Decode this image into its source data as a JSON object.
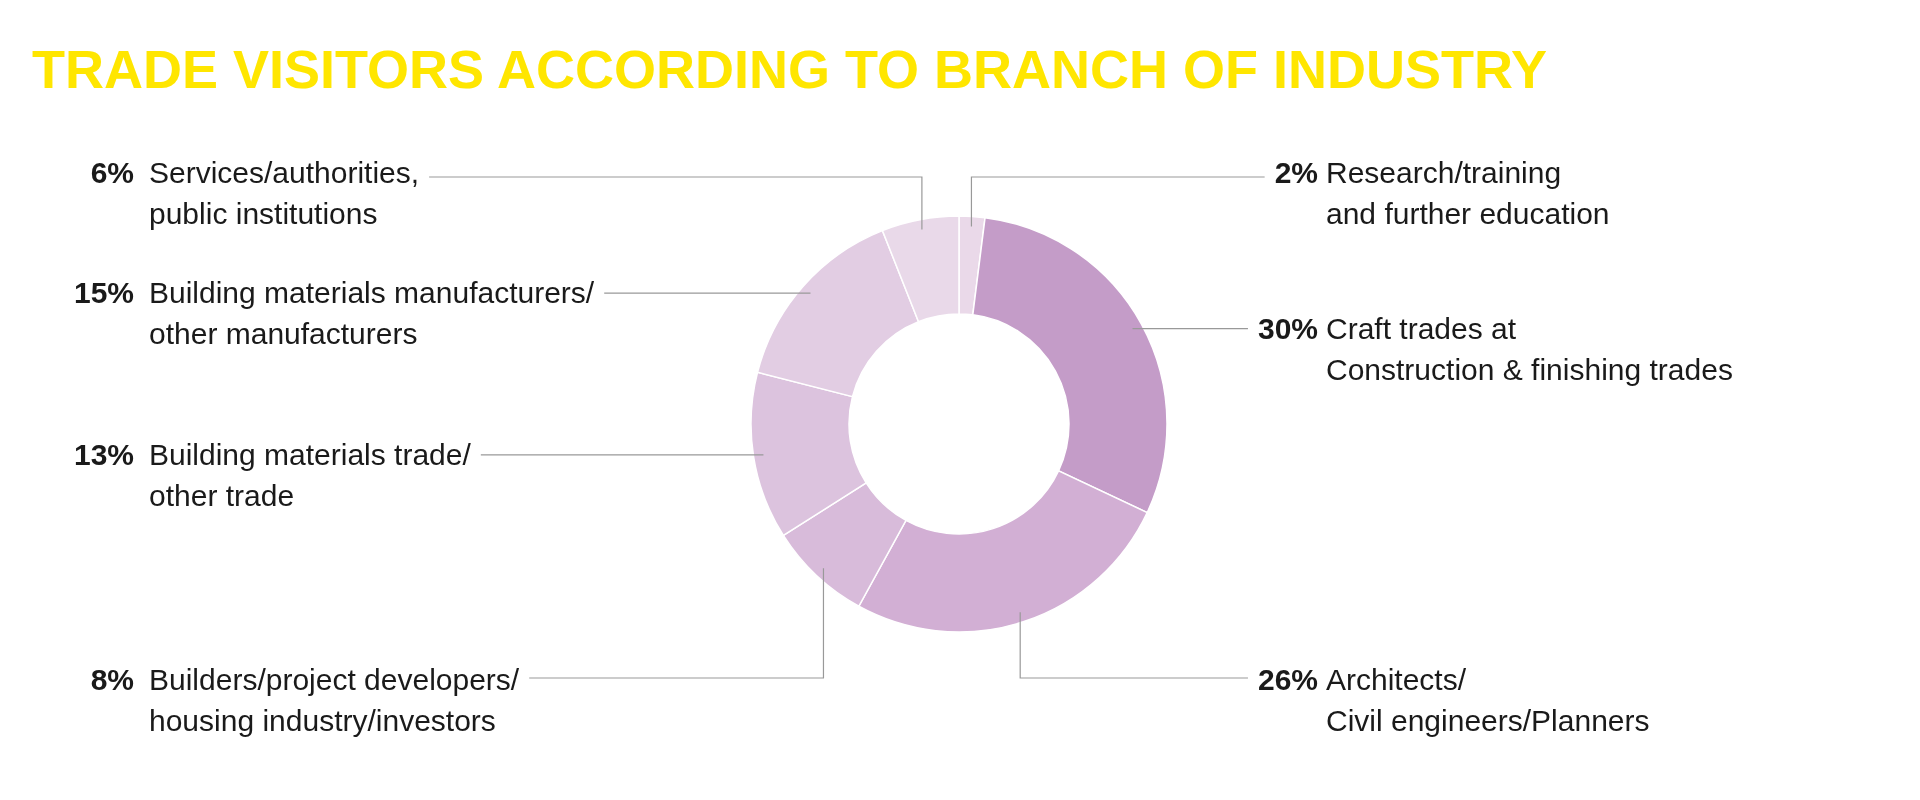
{
  "chart_data": {
    "type": "donut",
    "title": "TRADE VISITORS ACCORDING TO BRANCH OF INDUSTRY",
    "categories": [
      "Research/training\nand further education",
      "Craft trades at\nConstruction & finishing trades",
      "Architects/\nCivil engineers/Planners",
      "Builders/project developers/\nhousing industry/investors",
      "Building materials trade/\nother trade",
      "Building materials manufacturers/\nother manufacturers",
      "Services/authorities,\npublic institutions"
    ],
    "values": [
      2,
      30,
      26,
      8,
      13,
      15,
      6
    ],
    "colors": [
      "#ead9e9",
      "#c49cc8",
      "#d2afd4",
      "#d8bbda",
      "#dcc3de",
      "#e2cde3",
      "#e9d9e9"
    ],
    "value_labels": [
      "2%",
      "30%",
      "26%",
      "8%",
      "13%",
      "15%",
      "6%"
    ]
  }
}
